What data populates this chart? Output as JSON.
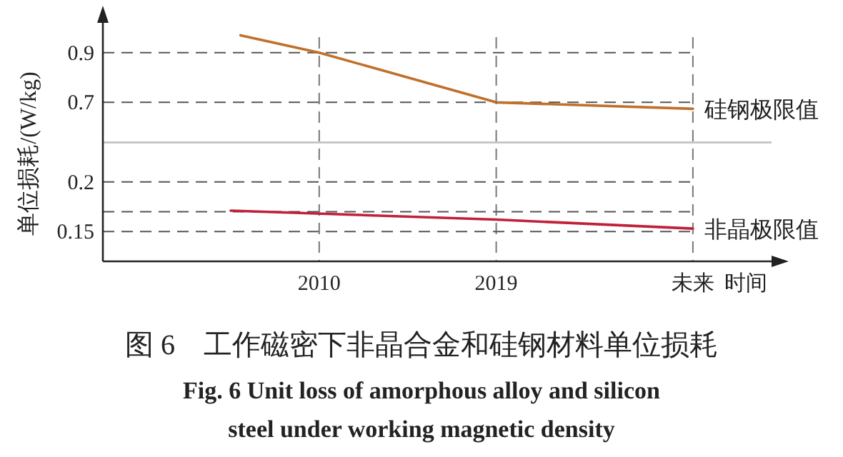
{
  "chart_data": [
    {
      "type": "line",
      "ylabel": "单位损耗/(W/kg)",
      "x": [
        2006,
        2010,
        2019,
        2029
      ],
      "xlim": [
        1999,
        2033
      ],
      "ylim": [
        0.54,
        1.02
      ],
      "yticks": [
        0.7,
        0.9
      ],
      "grid": true,
      "tick_labels": "y",
      "legend": false,
      "series": [
        {
          "name": "硅钢极限值",
          "color": "#c0702a",
          "values": [
            0.97,
            0.9,
            0.7,
            0.674
          ]
        }
      ]
    },
    {
      "type": "line",
      "title": "图 6　工作磁密下非晶合金和硅钢材料单位损耗",
      "subtitle": "Fig. 6  Unit loss of amorphous alloy and silicon steel under working magnetic density",
      "xlabel": "时间",
      "x": [
        2005.5,
        2019,
        2029
      ],
      "xlim": [
        1999,
        2033
      ],
      "xticks": [
        2010,
        2019,
        {
          "value": 2029,
          "label": "未来"
        }
      ],
      "ylim": [
        0.12,
        0.24
      ],
      "yticks": [
        0.15,
        {
          "value": 0.17,
          "label": null
        },
        0.2
      ],
      "grid": true,
      "legend": false,
      "series": [
        {
          "name": "非晶极限值",
          "color": "#c0203a",
          "values": [
            0.171,
            0.162,
            0.153
          ]
        }
      ]
    }
  ]
}
